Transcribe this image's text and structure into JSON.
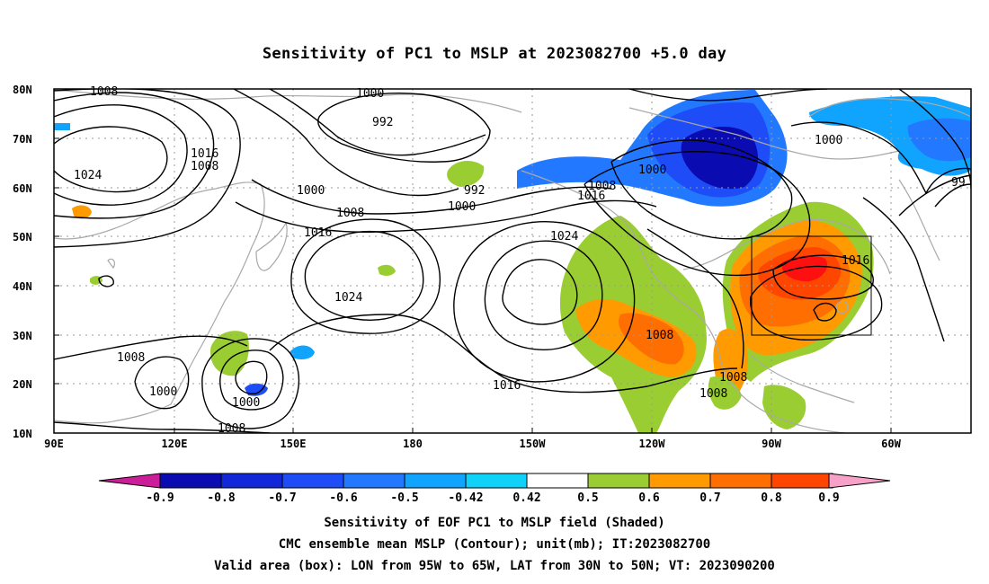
{
  "title": "Sensitivity of PC1 to MSLP at 2023082700 +5.0 day",
  "lat_labels": [
    "80N",
    "70N",
    "60N",
    "50N",
    "40N",
    "30N",
    "20N",
    "10N"
  ],
  "lon_labels": [
    "90E",
    "120E",
    "150E",
    "180",
    "150W",
    "120W",
    "90W",
    "60W"
  ],
  "colorbar": {
    "labels": [
      "-0.9",
      "-0.8",
      "-0.7",
      "-0.6",
      "-0.5",
      "-0.42",
      "0.42",
      "0.5",
      "0.6",
      "0.7",
      "0.8",
      "0.9"
    ],
    "colors": [
      "#cc1e99",
      "#0a0bb0",
      "#1228d8",
      "#1e4cf6",
      "#2278ff",
      "#10a4ff",
      "#10d2f8",
      "#ffffff",
      "#9acd32",
      "#ff9a00",
      "#ff6e00",
      "#ff4600",
      "#ff1010",
      "#f7a0c8"
    ]
  },
  "contour_labels": [
    "1008",
    "1000",
    "992",
    "1016",
    "1008",
    "1024",
    "1000",
    "992",
    "1000",
    "1008",
    "1016",
    "1024",
    "1016",
    "1000",
    "1008",
    "1016",
    "1024",
    "1000",
    "1008",
    "1016",
    "1000",
    "99",
    "1008",
    "1000",
    "1000",
    "1008",
    "1016",
    "1008",
    "1008"
  ],
  "caption": {
    "line1": "Sensitivity of EOF PC1 to MSLP field (Shaded)",
    "line2": "CMC ensemble mean MSLP (Contour); unit(mb); IT:2023082700",
    "line3": "Valid area (box): LON from 95W to 65W, LAT from 30N to 50N; VT: 2023090200"
  }
}
